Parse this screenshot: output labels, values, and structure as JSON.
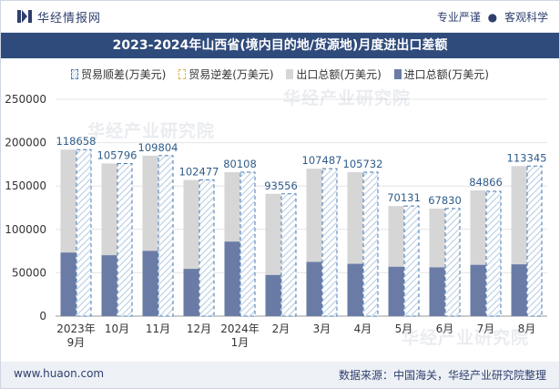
{
  "header": {
    "logo_text": "华经情报网",
    "tagline_left": "专业严谨",
    "tagline_dot": "●",
    "tagline_right": "客观科学"
  },
  "watermark": "华经产业研究院",
  "chart_data": {
    "type": "bar",
    "title": "2023-2024年山西省(境内目的地/货源地)月度进出口差额",
    "categories": [
      "2023年\n9月",
      "10月",
      "11月",
      "12月",
      "2024年\n1月",
      "2月",
      "3月",
      "4月",
      "5月",
      "6月",
      "7月",
      "8月"
    ],
    "series": [
      {
        "name": "贸易顺差(万美元)",
        "values": [
          118658,
          105796,
          109804,
          102477,
          80108,
          93556,
          107487,
          105732,
          70131,
          67830,
          84866,
          113345
        ]
      },
      {
        "name": "贸易逆差(万美元)",
        "values": [
          0,
          0,
          0,
          0,
          0,
          0,
          0,
          0,
          0,
          0,
          0,
          0
        ]
      },
      {
        "name": "出口总额(万美元)",
        "values": [
          192000,
          176000,
          185000,
          157000,
          166000,
          141000,
          170000,
          166000,
          127000,
          124000,
          145000,
          173000
        ]
      },
      {
        "name": "进口总额(万美元)",
        "values": [
          73300,
          70200,
          75200,
          54500,
          85900,
          47400,
          62500,
          60300,
          56900,
          56200,
          59100,
          59700
        ]
      }
    ],
    "ylim": [
      0,
      250000
    ],
    "yticks": [
      0,
      50000,
      100000,
      150000,
      200000,
      250000
    ],
    "grid": true,
    "legend": "top",
    "colors": {
      "export": "#d6d6d6",
      "import": "#6a7ca6",
      "surplus_border": "#4a7ab0",
      "surplus_hatch": "#b9cde3",
      "deficit_border": "#e0b64a",
      "label": "#2e5c8a"
    }
  },
  "footer": {
    "site": "www.huaon.com",
    "source": "数据来源：中国海关，华经产业研究院整理"
  }
}
